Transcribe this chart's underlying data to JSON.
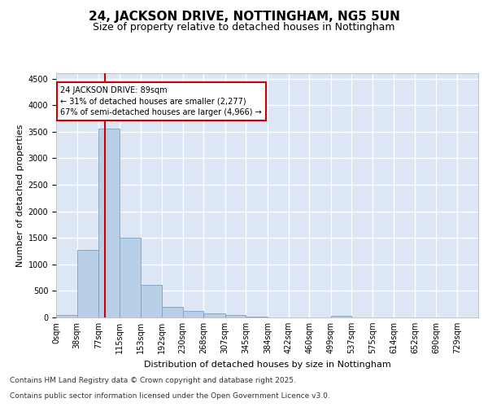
{
  "title_line1": "24, JACKSON DRIVE, NOTTINGHAM, NG5 5UN",
  "title_line2": "Size of property relative to detached houses in Nottingham",
  "xlabel": "Distribution of detached houses by size in Nottingham",
  "ylabel": "Number of detached properties",
  "background_color": "#dce6f5",
  "bar_color": "#b8cfe8",
  "bar_edge_color": "#7aa0c4",
  "vline_color": "#cc0000",
  "vline_x": 89,
  "annotation_text": "24 JACKSON DRIVE: 89sqm\n← 31% of detached houses are smaller (2,277)\n67% of semi-detached houses are larger (4,966) →",
  "annotation_box_color": "#ffffff",
  "annotation_box_edge": "#cc0000",
  "bins": [
    0,
    38,
    77,
    115,
    153,
    192,
    230,
    268,
    307,
    345,
    384,
    422,
    460,
    499,
    537,
    575,
    614,
    652,
    690,
    729,
    767
  ],
  "counts": [
    50,
    1270,
    3560,
    1500,
    620,
    200,
    130,
    80,
    40,
    20,
    5,
    5,
    0,
    30,
    0,
    0,
    0,
    0,
    0,
    0
  ],
  "ylim": [
    0,
    4600
  ],
  "yticks": [
    0,
    500,
    1000,
    1500,
    2000,
    2500,
    3000,
    3500,
    4000,
    4500
  ],
  "footer_line1": "Contains HM Land Registry data © Crown copyright and database right 2025.",
  "footer_line2": "Contains public sector information licensed under the Open Government Licence v3.0.",
  "title_fontsize": 11,
  "subtitle_fontsize": 9,
  "axis_label_fontsize": 8,
  "tick_fontsize": 7,
  "footer_fontsize": 6.5
}
